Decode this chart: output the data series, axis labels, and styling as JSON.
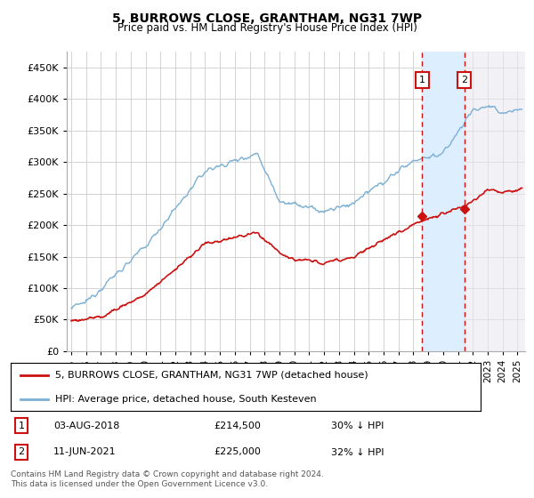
{
  "title": "5, BURROWS CLOSE, GRANTHAM, NG31 7WP",
  "subtitle": "Price paid vs. HM Land Registry's House Price Index (HPI)",
  "ylabel_ticks": [
    "£0",
    "£50K",
    "£100K",
    "£150K",
    "£200K",
    "£250K",
    "£300K",
    "£350K",
    "£400K",
    "£450K"
  ],
  "ylim": [
    0,
    475000
  ],
  "xlim_start": 1994.7,
  "xlim_end": 2025.5,
  "hpi_color": "#7bafd4",
  "price_color": "#cc1111",
  "marker1_date": 2018.58,
  "marker2_date": 2021.44,
  "marker1_price": 214500,
  "marker2_price": 225000,
  "marker1_label": "03-AUG-2018",
  "marker2_label": "11-JUN-2021",
  "marker1_hpi": "30% ↓ HPI",
  "marker2_hpi": "32% ↓ HPI",
  "legend_label1": "5, BURROWS CLOSE, GRANTHAM, NG31 7WP (detached house)",
  "legend_label2": "HPI: Average price, detached house, South Kesteven",
  "footer": "Contains HM Land Registry data © Crown copyright and database right 2024.\nThis data is licensed under the Open Government Licence v3.0.",
  "shaded_region_color": "#ddeeff",
  "hatch_region_color": "#e8e8e8",
  "background_color": "#ffffff",
  "grid_color": "#cccccc",
  "fig_width": 6.0,
  "fig_height": 5.6
}
